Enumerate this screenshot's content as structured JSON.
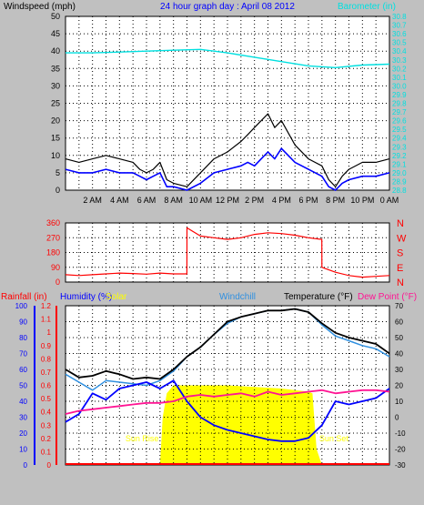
{
  "chart_data": [
    {
      "type": "line",
      "title": "24 hour graph day : April 08 2012",
      "ylabel_left": "Windspeed (mph)",
      "ylabel_right": "Barometer (in)",
      "ylim_left": [
        0,
        50
      ],
      "ylim_right": [
        28.8,
        30.8
      ],
      "left_ticks": [
        "0",
        "5",
        "10",
        "15",
        "20",
        "25",
        "30",
        "35",
        "40",
        "45",
        "50"
      ],
      "right_ticks": [
        "28.8",
        "28.9",
        "29.0",
        "29.1",
        "29.2",
        "29.3",
        "29.4",
        "29.5",
        "29.6",
        "29.7",
        "29.8",
        "29.9",
        "30.0",
        "30.1",
        "30.2",
        "30.3",
        "30.4",
        "30.5",
        "30.6",
        "30.7",
        "30.8"
      ],
      "x_ticks": [
        "2 AM",
        "4 AM",
        "6 AM",
        "8 AM",
        "10 AM",
        "12 PM",
        "2 PM",
        "4 PM",
        "6 PM",
        "8 PM",
        "10 PM",
        "0 AM"
      ],
      "grid": true,
      "series": [
        {
          "name": "Windspeed (mph)",
          "color": "#0000ff",
          "x": [
            0,
            1,
            2,
            3,
            4,
            5,
            5.5,
            6,
            6.5,
            7,
            7.5,
            8,
            9,
            10,
            11,
            12,
            13,
            13.5,
            14,
            14.5,
            15,
            15.5,
            16,
            17,
            18,
            19,
            19.5,
            20,
            20.5,
            21,
            22,
            23,
            24
          ],
          "values": [
            6,
            5,
            5,
            6,
            5,
            5,
            4,
            3,
            4,
            5,
            1,
            1,
            0,
            2,
            5,
            6,
            7,
            8,
            7,
            9,
            11,
            9,
            12,
            8,
            6,
            4,
            1,
            0,
            2,
            3,
            4,
            4,
            5
          ]
        },
        {
          "name": "Gust",
          "color": "#000000",
          "x": [
            0,
            1,
            2,
            3,
            4,
            5,
            5.5,
            6,
            6.5,
            7,
            7.5,
            8,
            9,
            10,
            11,
            12,
            13,
            13.5,
            14,
            14.5,
            15,
            15.5,
            16,
            17,
            18,
            19,
            19.5,
            20,
            20.5,
            21,
            22,
            23,
            24
          ],
          "values": [
            9,
            8,
            9,
            10,
            9,
            8,
            6,
            5,
            6,
            8,
            3,
            2,
            1,
            5,
            9,
            11,
            14,
            16,
            18,
            20,
            22,
            18,
            20,
            13,
            9,
            7,
            3,
            1,
            4,
            6,
            8,
            8,
            9
          ]
        },
        {
          "name": "Barometer (in)",
          "color": "#00e0e0",
          "axis": "right",
          "x": [
            0,
            2,
            4,
            6,
            8,
            10,
            11,
            12,
            14,
            16,
            18,
            20,
            22,
            24
          ],
          "values": [
            30.38,
            30.38,
            30.39,
            30.4,
            30.41,
            30.42,
            30.4,
            30.38,
            30.33,
            30.28,
            30.23,
            30.21,
            30.24,
            30.25
          ]
        }
      ]
    },
    {
      "type": "scatter",
      "ylabel_right": [
        "N",
        "W",
        "S",
        "E",
        "N"
      ],
      "ylim": [
        0,
        360
      ],
      "left_ticks": [
        "0",
        "90",
        "180",
        "270",
        "360"
      ],
      "series": [
        {
          "name": "Wind direction",
          "color": "#ff0000",
          "x": [
            0,
            1,
            2,
            3,
            4,
            5,
            6,
            7,
            8,
            8.99,
            9,
            10,
            11,
            12,
            13,
            14,
            15,
            16,
            17,
            18,
            18.99,
            19,
            20,
            21,
            22,
            23,
            24
          ],
          "values": [
            45,
            40,
            45,
            50,
            55,
            52,
            48,
            55,
            50,
            50,
            330,
            280,
            270,
            260,
            270,
            290,
            300,
            295,
            285,
            270,
            260,
            90,
            60,
            40,
            30,
            35,
            40
          ]
        }
      ]
    },
    {
      "type": "line",
      "ylabel_left": [
        "Rainfall (in)",
        "Humidity (%)",
        "Solar"
      ],
      "ylabel_right": [
        "Windchill",
        "Temperature (°F)",
        "Dew Point (°F)"
      ],
      "ylim_left": [
        0,
        100
      ],
      "ylim_right": [
        -30,
        70
      ],
      "rain_ticks": [
        "0",
        "0.1",
        "0.2",
        "0.3",
        "0.4",
        "0.5",
        "0.6",
        "0.7",
        "0.8",
        "0.9",
        "1",
        "1.1",
        "1.2"
      ],
      "humidity_ticks": [
        "0",
        "10",
        "20",
        "30",
        "40",
        "50",
        "60",
        "70",
        "80",
        "90",
        "100"
      ],
      "right_ticks": [
        "-30",
        "-20",
        "-10",
        "0",
        "10",
        "20",
        "30",
        "40",
        "50",
        "60",
        "70"
      ],
      "annotations": [
        "Sun Rise",
        "Sun Set"
      ],
      "series": [
        {
          "name": "Solar",
          "color": "#ffff00",
          "type": "area",
          "x": [
            0,
            6.5,
            7,
            7.2,
            7.5,
            8,
            10,
            12,
            14,
            16,
            17,
            18,
            18.3,
            18.6,
            19,
            24
          ],
          "values": [
            0,
            0,
            0,
            30,
            45,
            50,
            50,
            50,
            49,
            48,
            47,
            46,
            45,
            10,
            0,
            0
          ]
        },
        {
          "name": "Temperature (°F)",
          "color": "#000000",
          "axis": "right",
          "x": [
            0,
            1,
            2,
            3,
            4,
            5,
            6,
            7,
            8,
            9,
            10,
            11,
            12,
            13,
            14,
            15,
            16,
            17,
            18,
            19,
            20,
            21,
            22,
            23,
            24
          ],
          "values": [
            30,
            25,
            26,
            29,
            27,
            24,
            25,
            24,
            30,
            38,
            44,
            52,
            60,
            63,
            65,
            67,
            67,
            68,
            66,
            59,
            53,
            50,
            48,
            46,
            40
          ]
        },
        {
          "name": "Windchill",
          "color": "#3090e0",
          "axis": "right",
          "x": [
            0,
            1,
            2,
            3,
            4,
            5,
            6,
            7,
            8,
            9,
            10,
            11,
            12,
            13,
            14,
            15,
            16,
            17,
            18,
            19,
            20,
            21,
            22,
            23,
            24
          ],
          "values": [
            27,
            22,
            17,
            23,
            22,
            21,
            20,
            23,
            29,
            38,
            44,
            52,
            59,
            63,
            65,
            67,
            67,
            68,
            66,
            58,
            51,
            48,
            45,
            43,
            38
          ]
        },
        {
          "name": "Humidity (%)",
          "color": "#0000ff",
          "x": [
            0,
            1,
            2,
            3,
            4,
            5,
            6,
            7,
            8,
            9,
            10,
            11,
            12,
            13,
            14,
            15,
            16,
            17,
            18,
            19,
            20,
            21,
            22,
            23,
            24
          ],
          "values": [
            27,
            32,
            45,
            41,
            48,
            50,
            52,
            48,
            53,
            40,
            30,
            25,
            22,
            20,
            18,
            16,
            15,
            15,
            17,
            25,
            40,
            38,
            40,
            42,
            48
          ]
        },
        {
          "name": "Dew Point (°F)",
          "color": "#ff1493",
          "axis": "right",
          "x": [
            0,
            1,
            2,
            3,
            4,
            5,
            6,
            7,
            8,
            9,
            10,
            11,
            12,
            13,
            14,
            15,
            16,
            17,
            18,
            19,
            20,
            21,
            22,
            23,
            24
          ],
          "values": [
            2,
            4,
            5,
            6,
            7,
            8,
            9,
            9,
            10,
            13,
            14,
            13,
            14,
            15,
            13,
            16,
            14,
            15,
            16,
            17,
            15,
            16,
            17,
            17,
            16
          ]
        }
      ]
    }
  ]
}
